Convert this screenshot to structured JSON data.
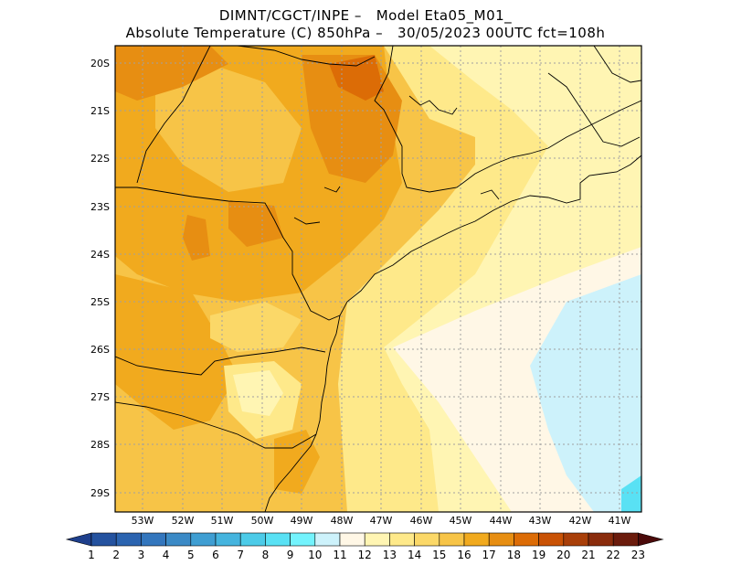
{
  "title": {
    "line1": "DIMNT/CGCT/INPE –   Model Eta05_M01_",
    "line2": "Absolute Temperature (C) 850hPa –   30/05/2023 00UTC fct=108h"
  },
  "map": {
    "lon_labels": [
      "53W",
      "52W",
      "51W",
      "50W",
      "49W",
      "48W",
      "47W",
      "46W",
      "45W",
      "44W",
      "43W",
      "42W",
      "41W"
    ],
    "lat_labels": [
      "20S",
      "21S",
      "22S",
      "23S",
      "24S",
      "25S",
      "26S",
      "27S",
      "28S",
      "29S"
    ]
  },
  "colorbar": {
    "labels": [
      "1",
      "2",
      "3",
      "4",
      "5",
      "6",
      "7",
      "8",
      "9",
      "10",
      "11",
      "12",
      "13",
      "14",
      "15",
      "16",
      "17",
      "18",
      "19",
      "20",
      "21",
      "22",
      "23"
    ],
    "colors": [
      "#1e3f8c",
      "#24529f",
      "#2b64b0",
      "#3376bd",
      "#3b8ac6",
      "#3f9ed2",
      "#45b4de",
      "#4ccbe8",
      "#59e1f4",
      "#73f3fd",
      "#cdf2fb",
      "#fff7e6",
      "#fff5b3",
      "#fee98a",
      "#fbd868",
      "#f7c447",
      "#f1aa1e",
      "#e78e12",
      "#dc6c06",
      "#c95205",
      "#a93f09",
      "#8a2c0c",
      "#6b1b0c",
      "#4b0a0a"
    ]
  }
}
